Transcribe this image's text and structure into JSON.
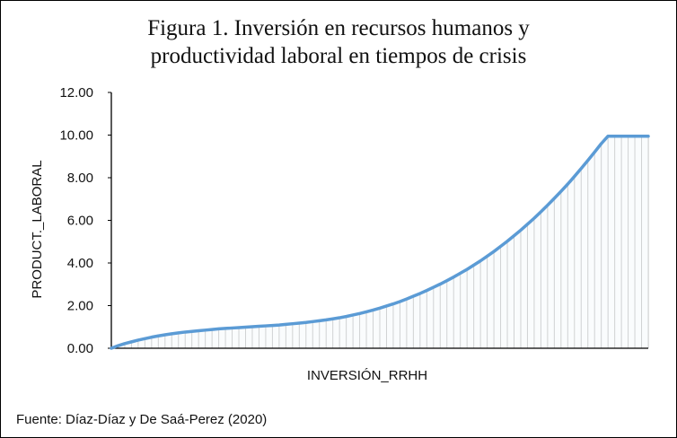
{
  "chart_data": {
    "type": "area",
    "title": "Figura 1. Inversión en recursos humanos y productividad laboral en tiempos de crisis",
    "title_lines": [
      "Figura 1. Inversión  en recursos humanos y",
      "productividad  laboral  en tiempos  de crisis"
    ],
    "xlabel": "INVERSIÓN_RRHH",
    "ylabel": "PRODUCT._LABORAL",
    "ylim": [
      0,
      12
    ],
    "yticks": [
      "0.00",
      "2.00",
      "4.00",
      "6.00",
      "8.00",
      "10.00",
      "12.00"
    ],
    "grid": false,
    "x": [
      0,
      1,
      2,
      3,
      4,
      5,
      6,
      7,
      8,
      9,
      10,
      11,
      12,
      13,
      14,
      15,
      16,
      17,
      18,
      19,
      20,
      21,
      22,
      23,
      24,
      25,
      26,
      27,
      28,
      29,
      30,
      31,
      32,
      33,
      34,
      35,
      36,
      37,
      38,
      39,
      40,
      41,
      42,
      43,
      44,
      45,
      46,
      47,
      48,
      49,
      50,
      51,
      52,
      53,
      54,
      55,
      56,
      57,
      58,
      59,
      60,
      61,
      62,
      63,
      64,
      65,
      66,
      67,
      68,
      69,
      70,
      71,
      72,
      73,
      74,
      75,
      76,
      77,
      78,
      79,
      80
    ],
    "values": [
      0.0,
      0.12,
      0.22,
      0.3,
      0.38,
      0.45,
      0.52,
      0.58,
      0.63,
      0.68,
      0.72,
      0.76,
      0.79,
      0.82,
      0.85,
      0.88,
      0.91,
      0.93,
      0.95,
      0.97,
      0.99,
      1.01,
      1.03,
      1.05,
      1.07,
      1.09,
      1.12,
      1.15,
      1.18,
      1.21,
      1.25,
      1.29,
      1.33,
      1.38,
      1.43,
      1.49,
      1.56,
      1.63,
      1.71,
      1.79,
      1.88,
      1.98,
      2.08,
      2.19,
      2.31,
      2.44,
      2.57,
      2.71,
      2.86,
      3.01,
      3.17,
      3.34,
      3.52,
      3.7,
      3.9,
      4.1,
      4.32,
      4.54,
      4.78,
      5.02,
      5.28,
      5.54,
      5.82,
      6.1,
      6.4,
      6.71,
      7.03,
      7.36,
      7.7,
      8.06,
      8.43,
      8.81,
      9.2,
      9.6,
      9.95,
      9.95,
      9.95,
      9.95,
      9.95,
      9.95,
      9.95
    ],
    "n_points": 81,
    "line_color": "#5b9bd5",
    "drop_line_color": "#bfbfbf",
    "area_fill": "#f2f5fa",
    "axis_color": "#000000"
  },
  "source": "Fuente: Díaz-Díaz y De Saá-Perez (2020)"
}
